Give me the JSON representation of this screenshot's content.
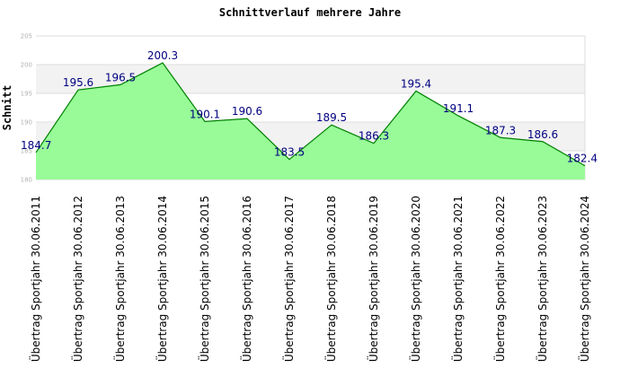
{
  "chart_data": {
    "type": "area",
    "title": "Schnittverlauf mehrere Jahre",
    "ylabel": "Schnitt",
    "xlabel": "",
    "ylim": [
      180,
      205
    ],
    "yticks": [
      "180",
      "185",
      "190",
      "195",
      "200",
      "205"
    ],
    "categories": [
      "Übertrag Sportjahr 30.06.2011",
      "Übertrag Sportjahr 30.06.2012",
      "Übertrag Sportjahr 30.06.2013",
      "Übertrag Sportjahr 30.06.2014",
      "Übertrag Sportjahr 30.06.2015",
      "Übertrag Sportjahr 30.06.2016",
      "Übertrag Sportjahr 30.06.2017",
      "Übertrag Sportjahr 30.06.2018",
      "Übertrag Sportjahr 30.06.2019",
      "Übertrag Sportjahr 30.06.2020",
      "Übertrag Sportjahr 30.06.2021",
      "Übertrag Sportjahr 30.06.2022",
      "Übertrag Sportjahr 30.06.2023",
      "Übertrag Sportjahr 30.06.2024"
    ],
    "values": [
      184.7,
      195.6,
      196.5,
      200.3,
      190.1,
      190.6,
      183.5,
      189.5,
      186.3,
      195.4,
      191.1,
      187.3,
      186.6,
      182.4
    ],
    "data_labels": [
      "184.7",
      "195.6",
      "196.5",
      "200.3",
      "190.1",
      "190.6",
      "183.5",
      "189.5",
      "186.3",
      "195.4",
      "191.1",
      "187.3",
      "186.6",
      "182.4"
    ],
    "grid": true,
    "colors": {
      "fill": "#98fb98",
      "line": "#008000",
      "label": "#000080",
      "band": "#f2f2f2",
      "grid": "#dddddd"
    }
  }
}
